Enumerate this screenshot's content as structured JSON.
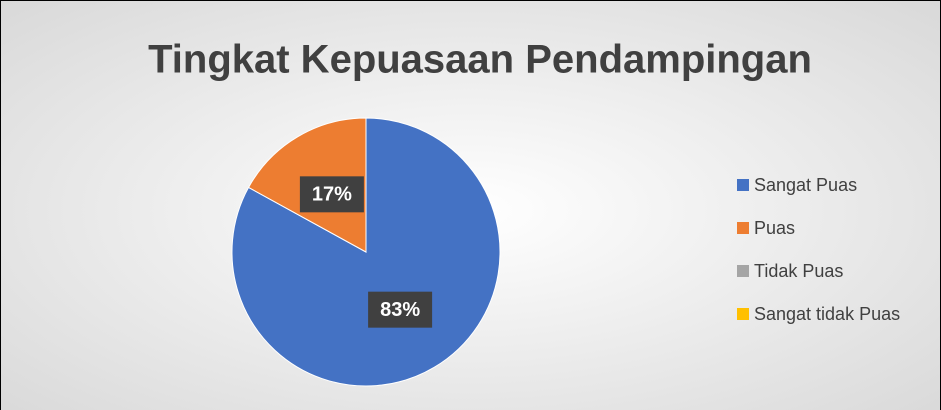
{
  "chart_data": {
    "type": "pie",
    "title": "Tingkat Kepuasaan Pendampingan",
    "categories": [
      "Sangat Puas",
      "Puas",
      "Tidak Puas",
      "Sangat tidak Puas"
    ],
    "values": [
      83,
      17,
      0,
      0
    ],
    "value_labels": [
      "83%",
      "17%",
      null,
      null
    ],
    "colors": [
      "#4472c4",
      "#ed7d31",
      "#a5a5a5",
      "#ffc000"
    ],
    "legend": "right"
  }
}
